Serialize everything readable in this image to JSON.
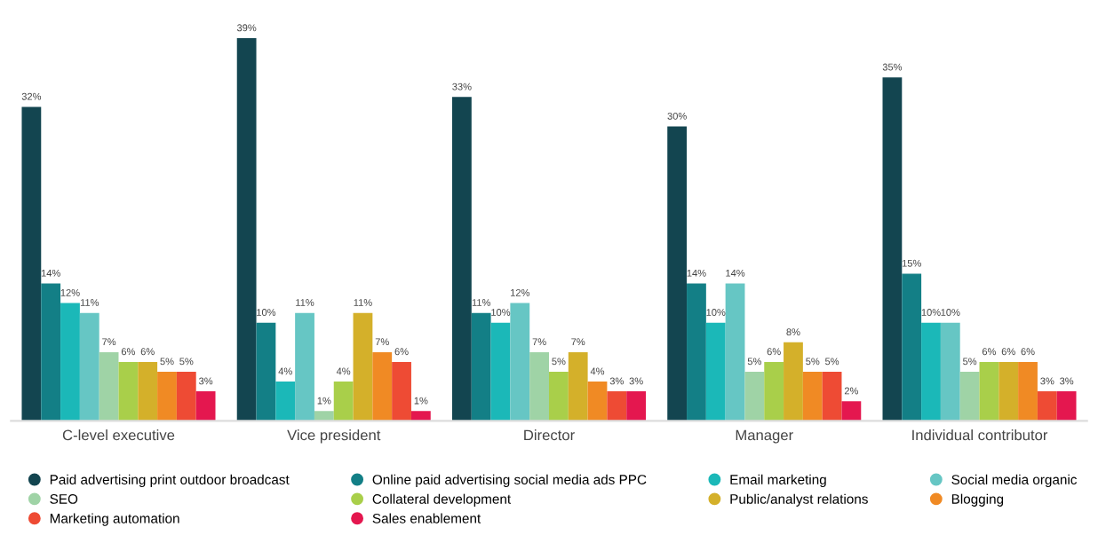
{
  "chart_data": {
    "type": "bar",
    "categories": [
      "C-level executive",
      "Vice president",
      "Director",
      "Manager",
      "Individual contributor"
    ],
    "series": [
      {
        "name": "Paid advertising print outdoor broadcast",
        "color": "#134550",
        "values": [
          32,
          39,
          33,
          30,
          35
        ],
        "value_labels": [
          "32%",
          "39%",
          "33%",
          "30%",
          "35%"
        ]
      },
      {
        "name": "Online paid advertising social media ads PPC",
        "color": "#137f86",
        "values": [
          14,
          10,
          11,
          14,
          15
        ],
        "value_labels": [
          "14%",
          "10%",
          "11%",
          "14%",
          "15%"
        ]
      },
      {
        "name": "Email marketing",
        "color": "#1bb8b8",
        "values": [
          12,
          4,
          10,
          10,
          10
        ],
        "value_labels": [
          "12%",
          "4%",
          "10%",
          "10%",
          "10%"
        ]
      },
      {
        "name": "Social media organic",
        "color": "#66c6c4",
        "values": [
          11,
          11,
          12,
          14,
          10
        ],
        "value_labels": [
          "11%",
          "11%",
          "12%",
          "14%",
          "10%"
        ]
      },
      {
        "name": "SEO",
        "color": "#9fd3a6",
        "values": [
          7,
          1,
          7,
          5,
          5
        ],
        "value_labels": [
          "7%",
          "1%",
          "7%",
          "5%",
          "5%"
        ]
      },
      {
        "name": "Collateral development",
        "color": "#a9cf4a",
        "values": [
          6,
          4,
          5,
          6,
          6
        ],
        "value_labels": [
          "6%",
          "4%",
          "5%",
          "6%",
          "6%"
        ]
      },
      {
        "name": "Public/analyst relations",
        "color": "#d4b02a",
        "values": [
          6,
          11,
          7,
          8,
          6
        ],
        "value_labels": [
          "6%",
          "11%",
          "7%",
          "8%",
          "6%"
        ]
      },
      {
        "name": "Blogging",
        "color": "#f08a24",
        "values": [
          5,
          7,
          4,
          5,
          6
        ],
        "value_labels": [
          "5%",
          "7%",
          "4%",
          "5%",
          "6%"
        ]
      },
      {
        "name": "Marketing automation",
        "color": "#ee4b34",
        "values": [
          5,
          6,
          3,
          5,
          3
        ],
        "value_labels": [
          "5%",
          "6%",
          "3%",
          "5%",
          "3%"
        ]
      },
      {
        "name": "Sales enablement",
        "color": "#e4174f",
        "values": [
          3,
          1,
          3,
          2,
          3
        ],
        "value_labels": [
          "3%",
          "1%",
          "3%",
          "2%",
          "3%"
        ]
      }
    ],
    "tick_labels": "x",
    "grid": false,
    "legend": "bottom",
    "marker": "circle"
  }
}
